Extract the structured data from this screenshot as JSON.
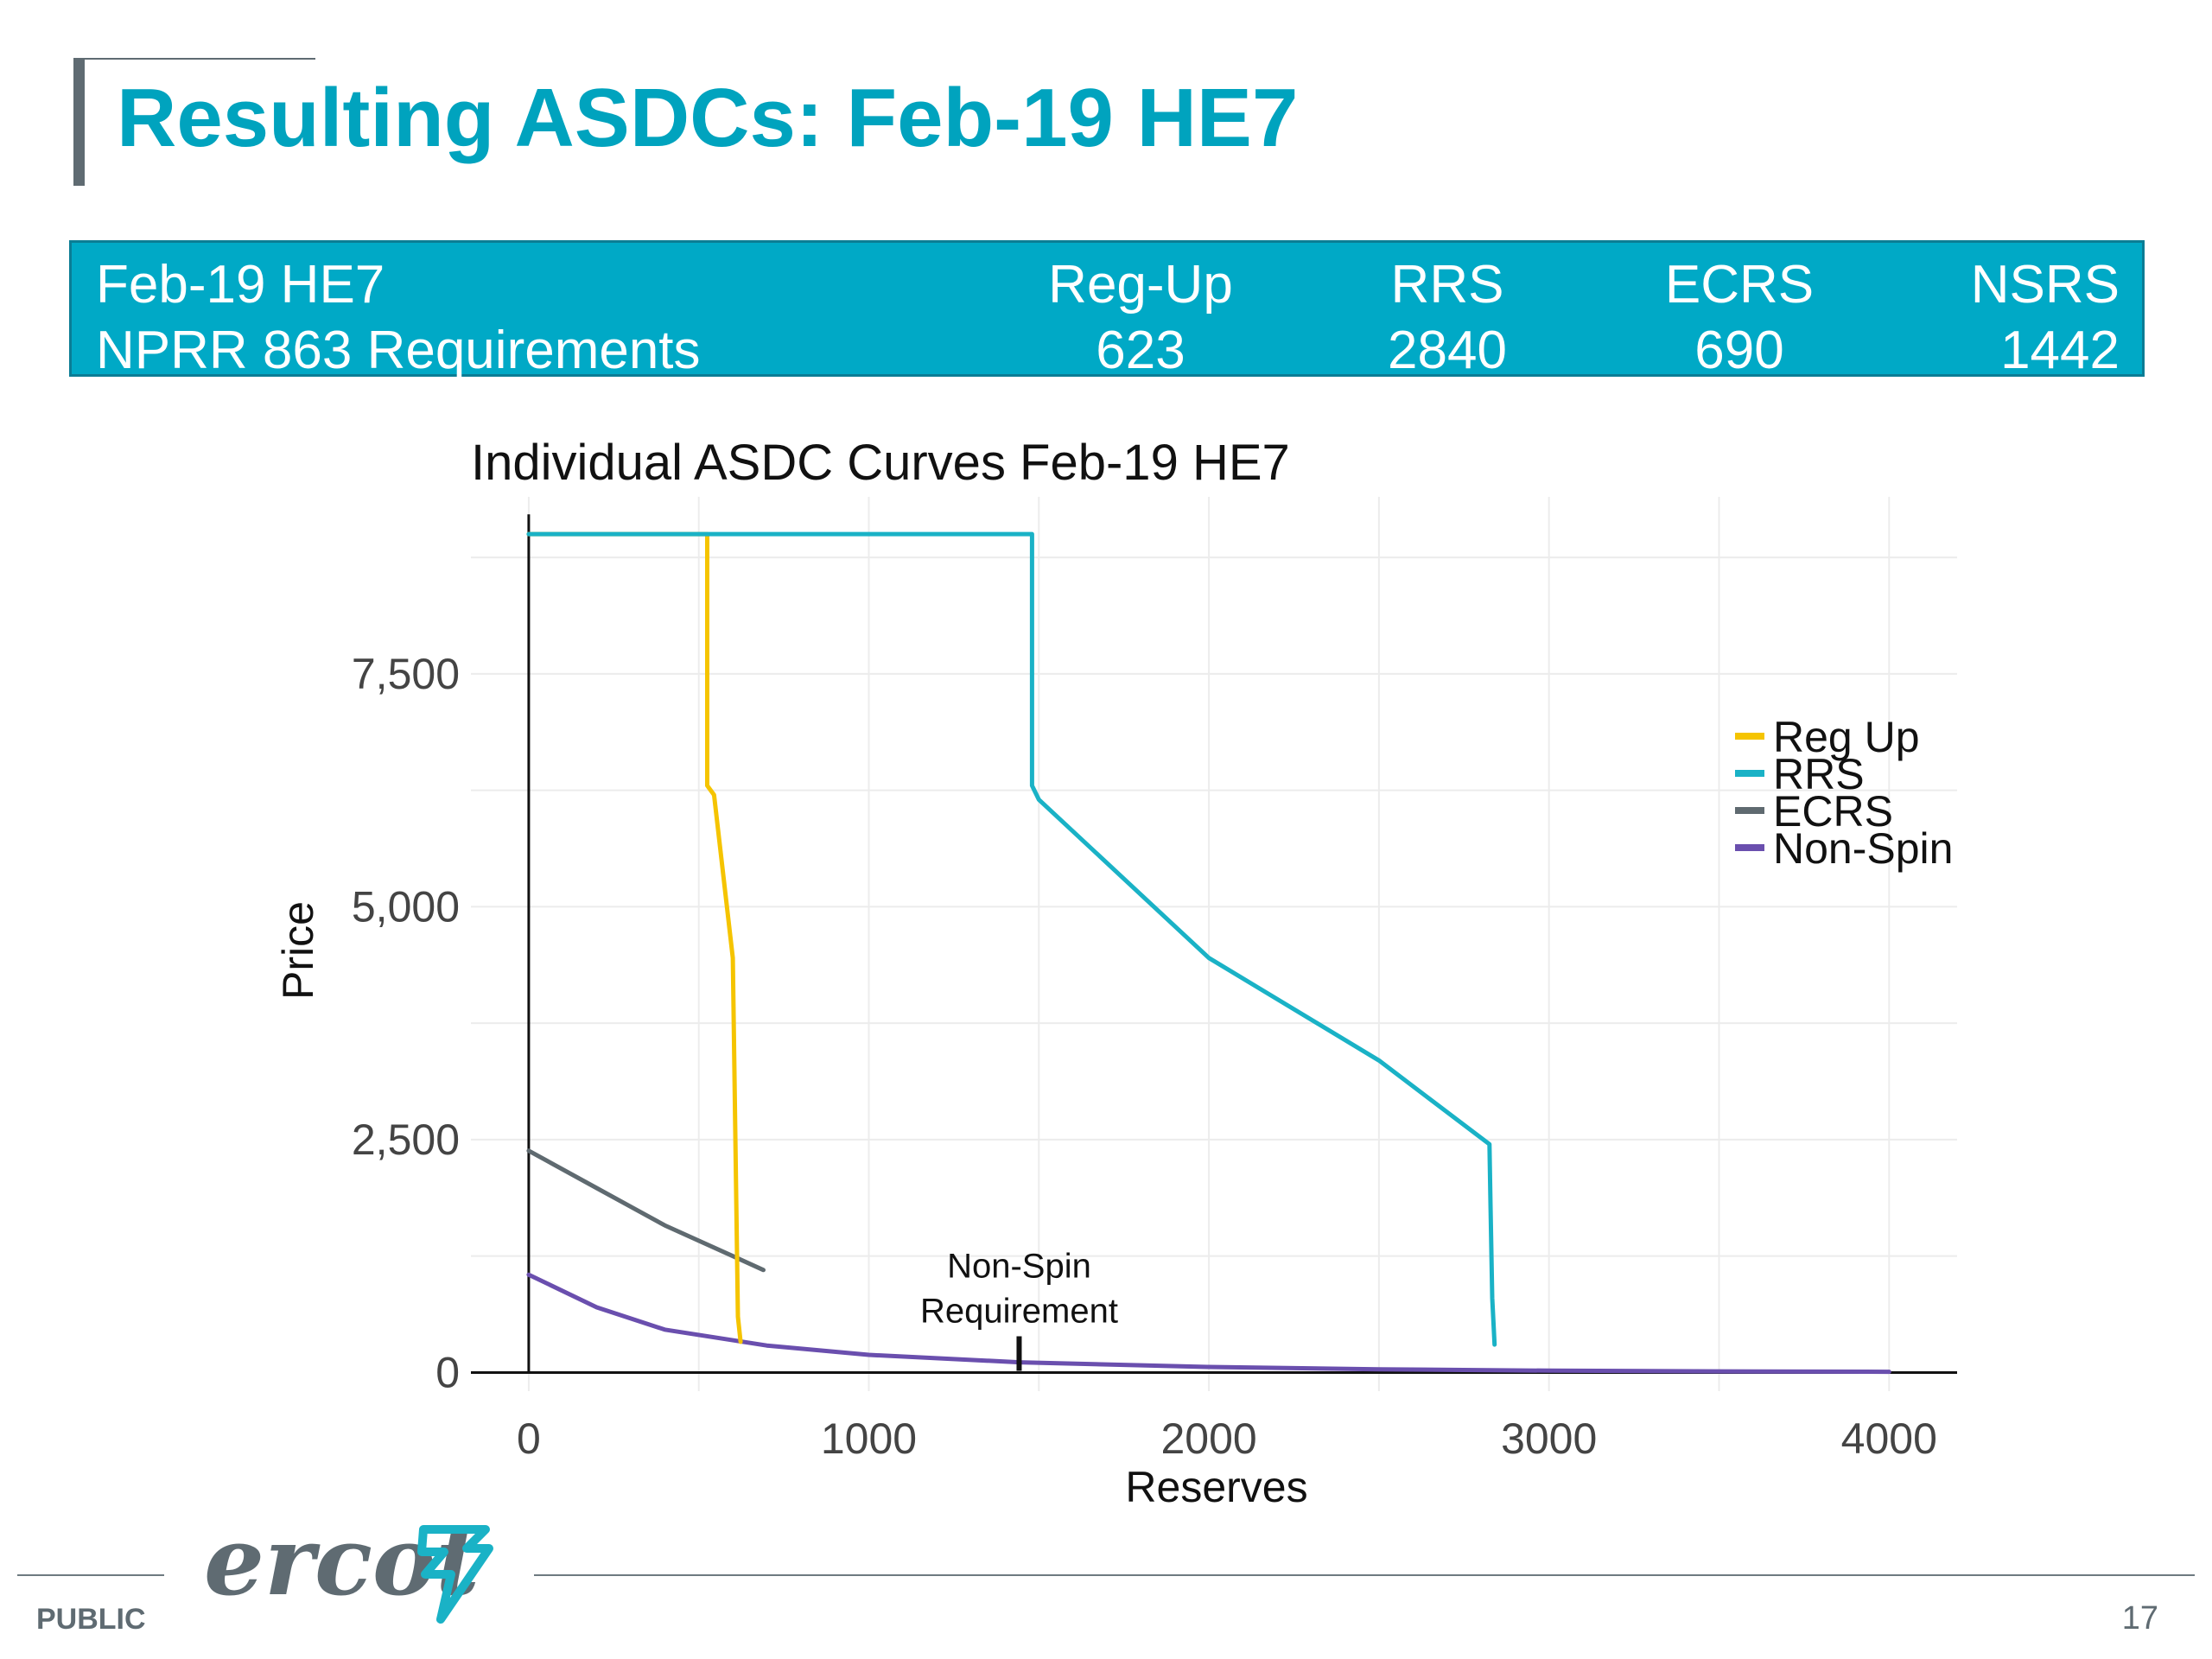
{
  "slide": {
    "title": "Resulting ASDCs: Feb-19 HE7",
    "footer_label": "PUBLIC",
    "page_number": "17",
    "logo_text": "ercot",
    "accent_color": "#00a3be"
  },
  "requirements": {
    "row1_label": "Feb-19 HE7",
    "row2_label": "NPRR 863 Requirements",
    "columns": [
      {
        "name": "Reg-Up",
        "value": "623"
      },
      {
        "name": "RRS",
        "value": "2840"
      },
      {
        "name": "ECRS",
        "value": "690"
      },
      {
        "name": "NSRS",
        "value": "1442"
      }
    ]
  },
  "chart_data": {
    "type": "line",
    "title": "Individual ASDC Curves Feb-19 HE7",
    "xlabel": "Reserves",
    "ylabel": "Price",
    "xlim": [
      -170,
      4200
    ],
    "ylim": [
      -200,
      9400
    ],
    "xticks": [
      0,
      1000,
      2000,
      3000,
      4000
    ],
    "xtick_labels": [
      "0",
      "1000",
      "2000",
      "3000",
      "4000"
    ],
    "yticks": [
      0,
      2500,
      5000,
      7500
    ],
    "ytick_labels": [
      "0",
      "2,500",
      "5,000",
      "7,500"
    ],
    "grid": true,
    "legend_position": "right",
    "series": [
      {
        "name": "Reg Up",
        "color": "#f5c400",
        "x": [
          0,
          525,
          525,
          545,
          600,
          615,
          623
        ],
        "y": [
          9000,
          9000,
          6300,
          6200,
          4450,
          600,
          330
        ]
      },
      {
        "name": "RRS",
        "color": "#1ab2c6",
        "x": [
          0,
          1480,
          1480,
          1500,
          2000,
          2500,
          2825,
          2828,
          2833,
          2840
        ],
        "y": [
          9000,
          9000,
          6300,
          6150,
          4450,
          3350,
          2450,
          1800,
          800,
          300
        ]
      },
      {
        "name": "ECRS",
        "color": "#5f6a70",
        "x": [
          0,
          200,
          400,
          600,
          690
        ],
        "y": [
          2380,
          1980,
          1580,
          1250,
          1100
        ]
      },
      {
        "name": "Non-Spin",
        "color": "#6a4fae",
        "x": [
          0,
          200,
          400,
          700,
          1000,
          1442,
          2000,
          2500,
          3000,
          3500,
          4000
        ],
        "y": [
          1050,
          700,
          460,
          290,
          190,
          110,
          60,
          35,
          20,
          12,
          8
        ]
      }
    ],
    "annotation": {
      "text_line1": "Non-Spin",
      "text_line2": "Requirement",
      "x": 1442
    }
  }
}
